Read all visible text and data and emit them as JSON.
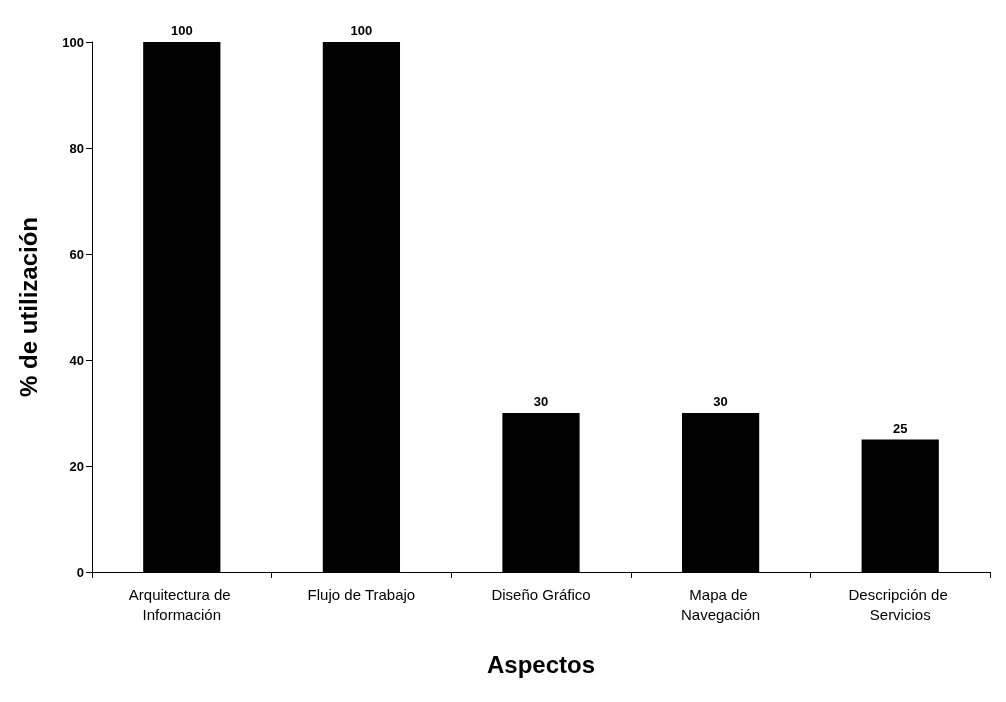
{
  "chart_data": {
    "type": "bar",
    "xlabel": "Aspectos",
    "ylabel": "% de utilización",
    "categories": [
      "Arquitectura de Información",
      "Flujo de Trabajo",
      "Diseño Gráfico",
      "Mapa de Navegación",
      "Descripción de Servicios"
    ],
    "values": [
      100,
      100,
      30,
      30,
      25
    ],
    "color": "#000000",
    "ylim": [
      0,
      100
    ],
    "yticks": [
      0,
      20,
      40,
      60,
      80,
      100
    ],
    "grid": false,
    "data_labels": true
  }
}
